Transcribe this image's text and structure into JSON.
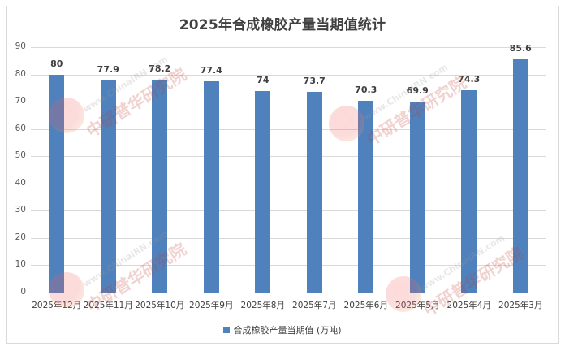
{
  "chart_data": {
    "type": "bar",
    "title": "2025年合成橡胶产量当期值统计",
    "categories": [
      "2025年12月",
      "2025年11月",
      "2025年10月",
      "2025年9月",
      "2025年8月",
      "2025年7月",
      "2025年6月",
      "2025年5月",
      "2025年4月",
      "2025年3月"
    ],
    "series": [
      {
        "name": "合成橡胶产量当期值 (万吨)",
        "values": [
          80,
          77.9,
          78.2,
          77.4,
          74,
          73.7,
          70.3,
          69.9,
          74.3,
          85.6
        ],
        "color": "#4f81bd"
      }
    ],
    "data_labels": [
      "80",
      "77.9",
      "78.2",
      "77.4",
      "74",
      "73.7",
      "70.3",
      "69.9",
      "74.3",
      "85.6"
    ],
    "xlabel": "",
    "ylabel": "",
    "ylim": [
      0,
      90
    ],
    "yticks": [
      "0",
      "10",
      "20",
      "30",
      "40",
      "50",
      "60",
      "70",
      "80",
      "90"
    ],
    "grid": true,
    "legend_position": "bottom"
  },
  "watermark": {
    "logo_text": "CIRN",
    "brand_text": "中研普华研究院",
    "url_text": "www.ChinaIRN.com"
  }
}
